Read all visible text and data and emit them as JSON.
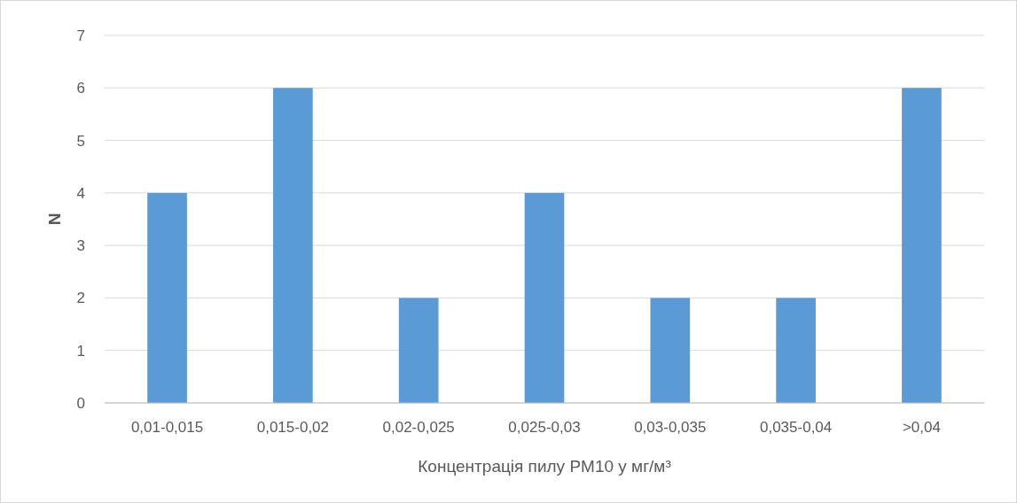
{
  "chart_data": {
    "type": "bar",
    "categories": [
      "0,01-0,015",
      "0,015-0,02",
      "0,02-0,025",
      "0,025-0,03",
      "0,03-0,035",
      "0,035-0,04",
      ">0,04"
    ],
    "values": [
      4,
      6,
      2,
      4,
      2,
      2,
      6
    ],
    "color": "#5b9bd5",
    "xlabel": "Концентрація пилу PM10 у мг/м³",
    "ylabel": "N",
    "ylim": [
      0,
      7
    ],
    "yticks": [
      0,
      1,
      2,
      3,
      4,
      5,
      6,
      7
    ],
    "grid": "y"
  }
}
